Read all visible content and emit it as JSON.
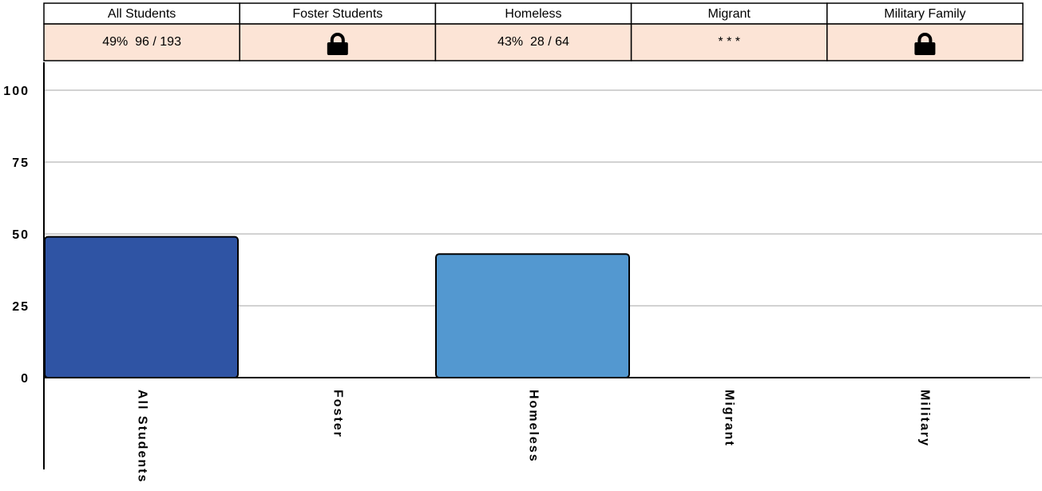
{
  "table": {
    "headers": [
      "All Students",
      "Foster Students",
      "Homeless",
      "Migrant",
      "Military Family"
    ],
    "cells": [
      "49%  96 / 193",
      null,
      "43%  28 / 64",
      "* * *",
      null
    ]
  },
  "chart_data": {
    "type": "bar",
    "categories": [
      "All Students",
      "Foster",
      "Homeless",
      "Migrant",
      "Military"
    ],
    "values": [
      49,
      null,
      43,
      null,
      null
    ],
    "colors": [
      "#2f54a4",
      null,
      "#5398d0",
      null,
      null
    ],
    "ylim": [
      0,
      100
    ],
    "yticks": [
      0,
      25,
      50,
      75,
      100
    ],
    "grid": true
  }
}
